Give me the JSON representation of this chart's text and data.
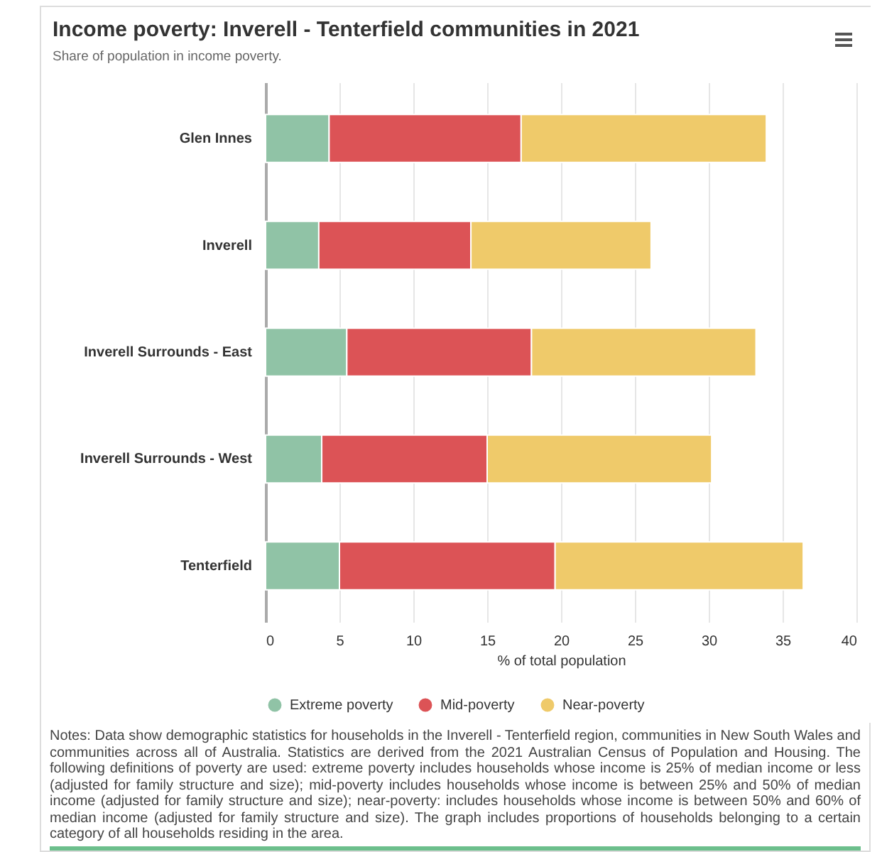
{
  "chart_data": {
    "type": "bar",
    "orientation": "horizontal",
    "stacked": true,
    "title": "Income poverty: Inverell - Tenterfield communities in 2021",
    "subtitle": "Share of population in income poverty.",
    "xlabel": "% of total population",
    "categories": [
      "Glen Innes",
      "Inverell",
      "Inverell Surrounds - East",
      "Inverell Surrounds - West",
      "Tenterfield"
    ],
    "series": [
      {
        "name": "Extreme poverty",
        "color": "#90c3a6",
        "values": [
          4.3,
          3.6,
          5.5,
          3.8,
          5.0
        ]
      },
      {
        "name": "Mid-poverty",
        "color": "#dc5356",
        "values": [
          13.0,
          10.3,
          12.5,
          11.2,
          14.6
        ]
      },
      {
        "name": "Near-poverty",
        "color": "#efca6a",
        "values": [
          16.6,
          12.2,
          15.2,
          15.2,
          16.8
        ]
      }
    ],
    "xlim": [
      0,
      40
    ],
    "xticks": [
      0,
      5,
      10,
      15,
      20,
      25,
      30,
      35,
      40
    ],
    "grid": "x",
    "legend": "bottom",
    "annotations": [
      "Notes: Data show demographic statistics for households in the Inverell - Tenterfield region, communities in New South Wales and communities across all of Australia. Statistics are derived from the 2021 Australian Census of Population and Housing. The following definitions of poverty are used: extreme poverty includes households whose income is 25% of median income or less (adjusted for family structure and size); mid-poverty includes households whose income is between 25% and 50% of median income (adjusted for family structure and size); near-poverty: includes households whose income is between 50% and 60% of median income (adjusted for family structure and size). The graph includes proportions of households belonging to a certain category of all households residing in the area."
    ]
  }
}
